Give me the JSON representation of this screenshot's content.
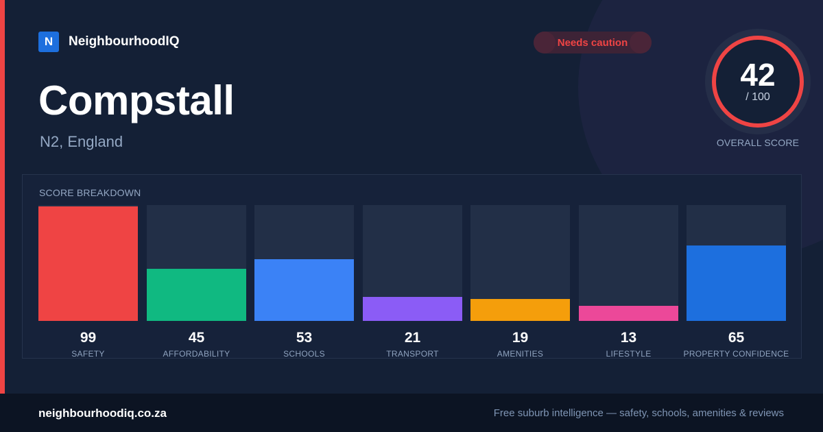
{
  "brand": {
    "logo_letter": "N",
    "name": "NeighbourhoodIQ"
  },
  "badge": {
    "label": "Needs caution",
    "color": "#ef4444"
  },
  "area": {
    "name": "Compstall",
    "location": "N2, England"
  },
  "overall": {
    "score": "42",
    "max": "/ 100",
    "label": "OVERALL SCORE",
    "ring_color": "#ef4444"
  },
  "breakdown": {
    "title": "SCORE BREAKDOWN",
    "items": [
      {
        "value": "99",
        "label": "SAFETY",
        "fraction": 0.99,
        "color": "#ef4444"
      },
      {
        "value": "45",
        "label": "AFFORDABILITY",
        "fraction": 0.45,
        "color": "#10b981"
      },
      {
        "value": "53",
        "label": "SCHOOLS",
        "fraction": 0.53,
        "color": "#3b82f6"
      },
      {
        "value": "21",
        "label": "TRANSPORT",
        "fraction": 0.21,
        "color": "#8b5cf6"
      },
      {
        "value": "19",
        "label": "AMENITIES",
        "fraction": 0.19,
        "color": "#f59e0b"
      },
      {
        "value": "13",
        "label": "LIFESTYLE",
        "fraction": 0.13,
        "color": "#ec4899"
      },
      {
        "value": "65",
        "label": "PROPERTY CONFIDENCE",
        "fraction": 0.65,
        "color": "#1d6fde"
      }
    ]
  },
  "footer": {
    "domain": "neighbourhoodiq.co.za",
    "tagline": "Free suburb intelligence — safety, schools, amenities & reviews"
  }
}
